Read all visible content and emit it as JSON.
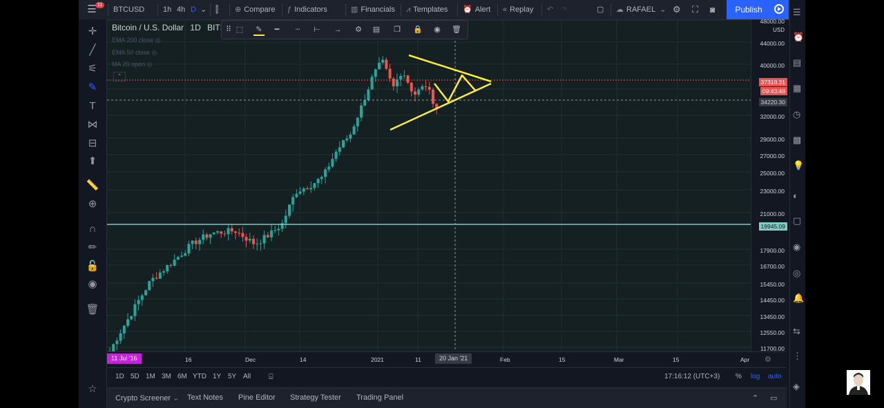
{
  "topbar": {
    "badge": "11",
    "symbol": "BTCUSD",
    "intervals": [
      "1h",
      "4h",
      "D"
    ],
    "compare": "Compare",
    "indicators": "Indicators",
    "financials": "Financials",
    "templates": "Templates",
    "alert": "Alert",
    "replay": "Replay",
    "layout_name": "RAFAEL",
    "publish": "Publish"
  },
  "legend": {
    "title": "Bitcoin / U.S. Dollar",
    "interval": "1D",
    "exchange": "BITS",
    "indicators": [
      "EMA 200 close",
      "EMA 50 close",
      "MA 20 open"
    ]
  },
  "price_axis": {
    "currency": "USD",
    "labels": [
      "48000.00",
      "44000.00",
      "40000.00",
      "37318.31",
      "09:43:48",
      "34220.30",
      "32000.00",
      "29000.00",
      "27000.00",
      "25000.00",
      "23000.00",
      "21000.00",
      "19945.09",
      "17900.00",
      "16700.00",
      "15450.00",
      "14450.00",
      "13450.00",
      "12550.00",
      "11700.00"
    ],
    "current_price": "37318.31",
    "countdown": "09:43:48",
    "crosshair_price": "34220.30",
    "hline_price": "19945.09"
  },
  "time_axis": {
    "labels": [
      "16",
      "Dec",
      "14",
      "2021",
      "11",
      "Feb",
      "15",
      "Mar",
      "15",
      "Apr"
    ],
    "left_date": "11 Jul '16",
    "crosshair_date": "20 Jan '21"
  },
  "range_bar": {
    "ranges": [
      "1D",
      "5D",
      "1M",
      "3M",
      "6M",
      "YTD",
      "1Y",
      "5Y",
      "All"
    ],
    "clock": "17:16:12 (UTC+3)",
    "percent": "%",
    "log": "log",
    "auto": "auto"
  },
  "bottom_tabs": [
    "Crypto Screener",
    "Text Notes",
    "Pine Editor",
    "Strategy Tester",
    "Trading Panel"
  ],
  "colors": {
    "up": "#26a69a",
    "down": "#ef5350",
    "drawing": "#ffeb3b",
    "accent": "#2962ff",
    "hline": "#80cbc4"
  }
}
